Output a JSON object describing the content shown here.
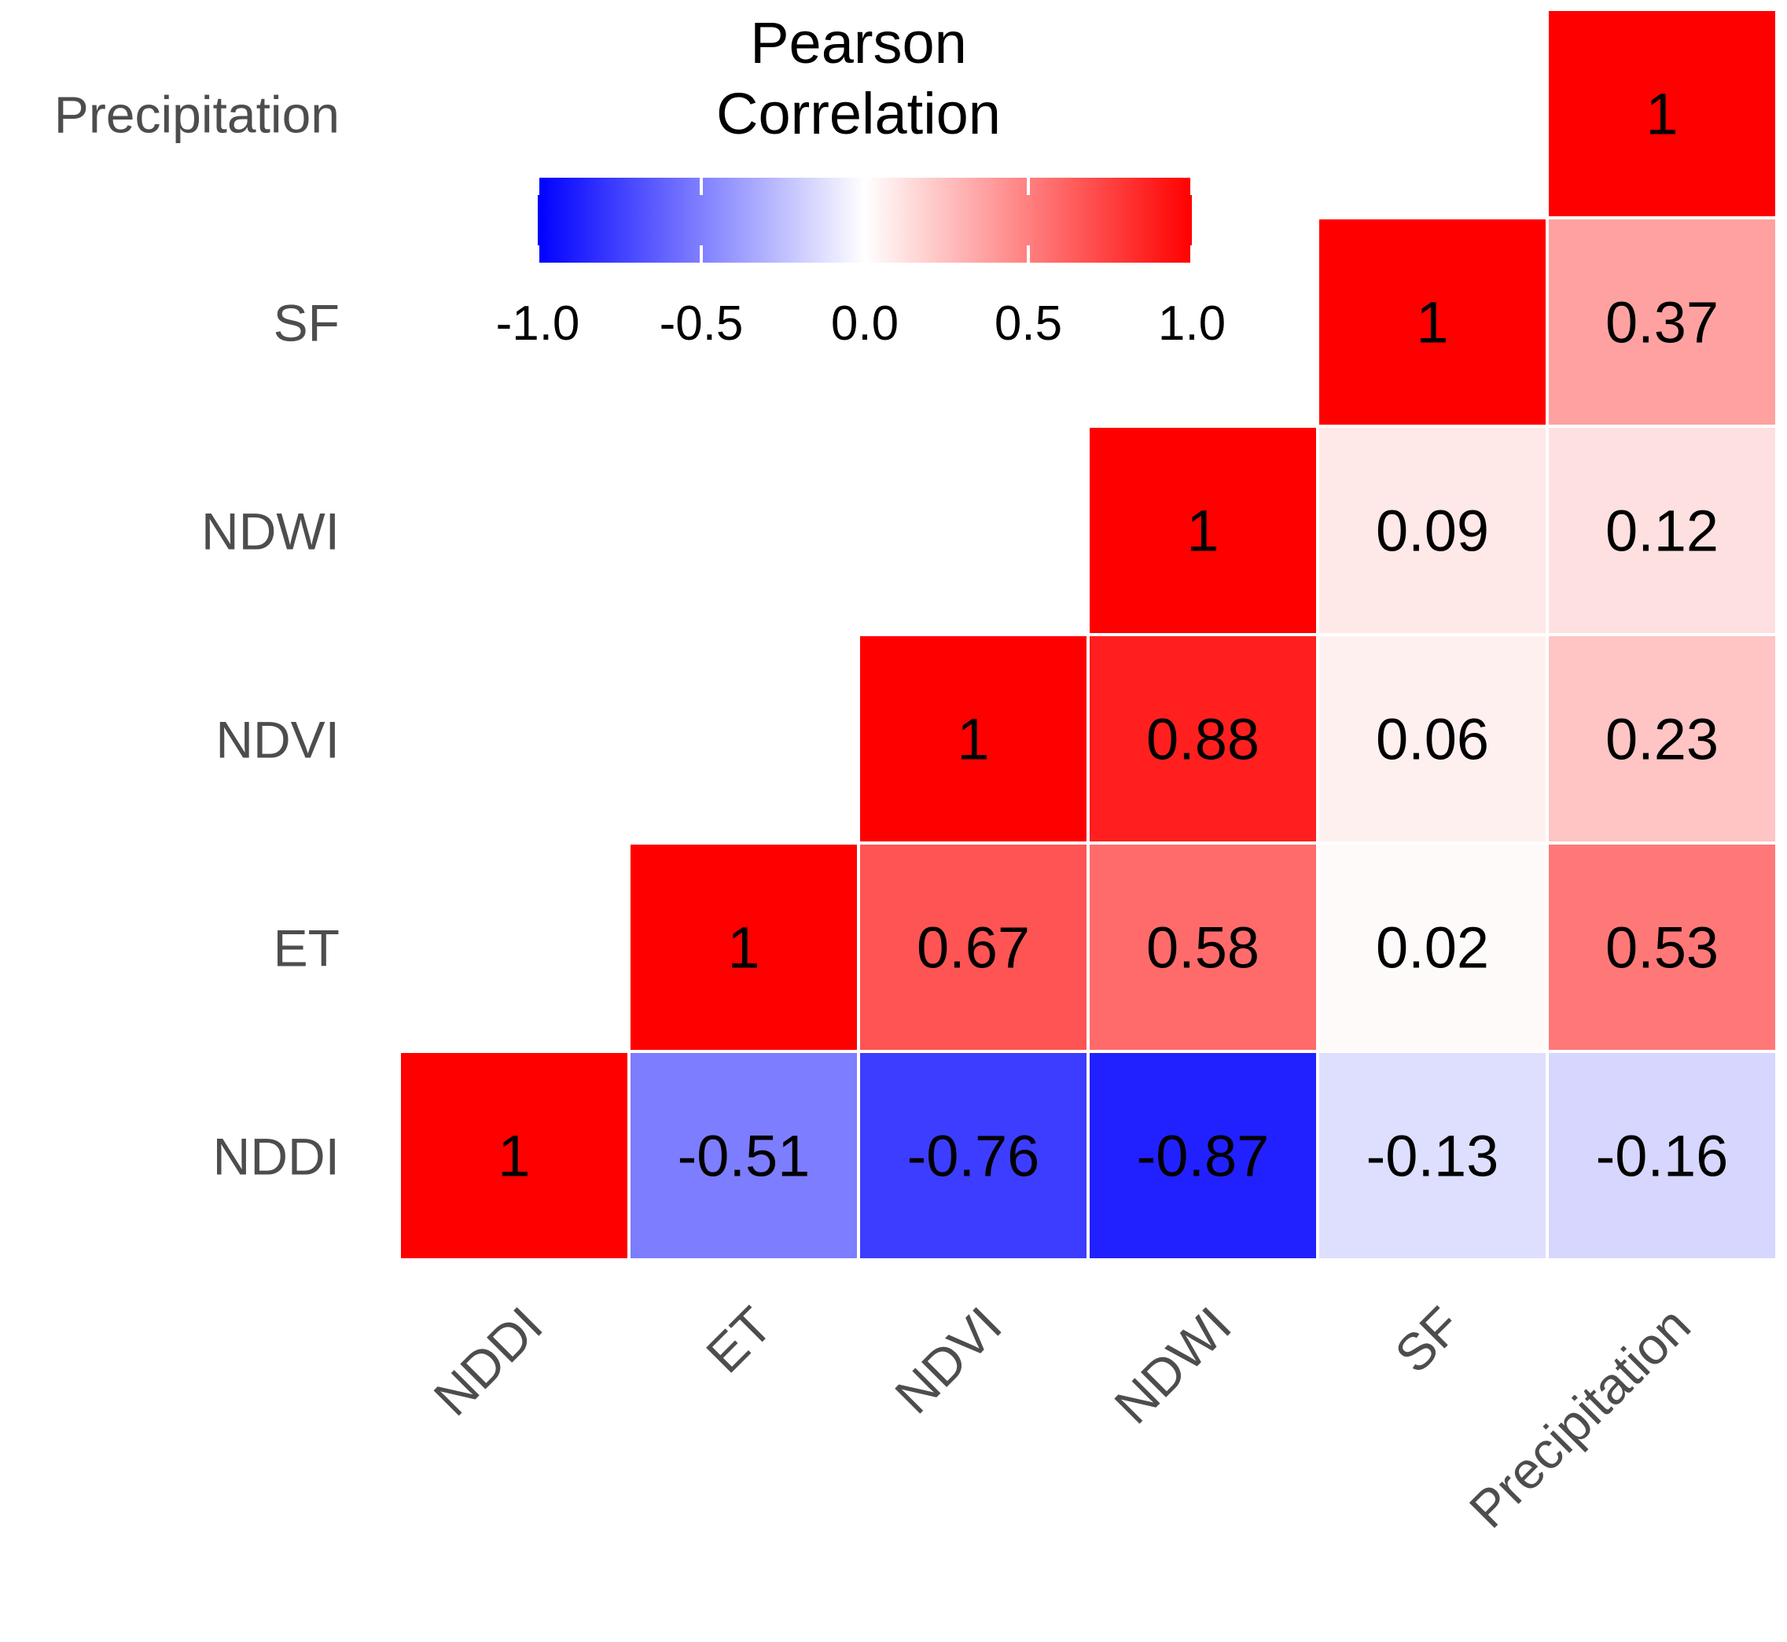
{
  "chart_data": {
    "type": "heatmap",
    "title": "",
    "variables": [
      "NDDI",
      "ET",
      "NDVI",
      "NDWI",
      "SF",
      "Precipitation"
    ],
    "x_tick_labels": [
      "NDDI",
      "ET",
      "NDVI",
      "NDWI",
      "SF",
      "Precipitation"
    ],
    "y_tick_labels": [
      "NDDI",
      "ET",
      "NDVI",
      "NDWI",
      "SF",
      "Precipitation"
    ],
    "cells": [
      {
        "x": "NDDI",
        "y": "NDDI",
        "value": 1,
        "label": "1"
      },
      {
        "x": "ET",
        "y": "NDDI",
        "value": -0.51,
        "label": "-0.51"
      },
      {
        "x": "NDVI",
        "y": "NDDI",
        "value": -0.76,
        "label": "-0.76"
      },
      {
        "x": "NDWI",
        "y": "NDDI",
        "value": -0.87,
        "label": "-0.87"
      },
      {
        "x": "SF",
        "y": "NDDI",
        "value": -0.13,
        "label": "-0.13"
      },
      {
        "x": "Precipitation",
        "y": "NDDI",
        "value": -0.16,
        "label": "-0.16"
      },
      {
        "x": "ET",
        "y": "ET",
        "value": 1,
        "label": "1"
      },
      {
        "x": "NDVI",
        "y": "ET",
        "value": 0.67,
        "label": "0.67"
      },
      {
        "x": "NDWI",
        "y": "ET",
        "value": 0.58,
        "label": "0.58"
      },
      {
        "x": "SF",
        "y": "ET",
        "value": 0.02,
        "label": "0.02"
      },
      {
        "x": "Precipitation",
        "y": "ET",
        "value": 0.53,
        "label": "0.53"
      },
      {
        "x": "NDVI",
        "y": "NDVI",
        "value": 1,
        "label": "1"
      },
      {
        "x": "NDWI",
        "y": "NDVI",
        "value": 0.88,
        "label": "0.88"
      },
      {
        "x": "SF",
        "y": "NDVI",
        "value": 0.06,
        "label": "0.06"
      },
      {
        "x": "Precipitation",
        "y": "NDVI",
        "value": 0.23,
        "label": "0.23"
      },
      {
        "x": "NDWI",
        "y": "NDWI",
        "value": 1,
        "label": "1"
      },
      {
        "x": "SF",
        "y": "NDWI",
        "value": 0.09,
        "label": "0.09"
      },
      {
        "x": "Precipitation",
        "y": "NDWI",
        "value": 0.12,
        "label": "0.12"
      },
      {
        "x": "SF",
        "y": "SF",
        "value": 1,
        "label": "1"
      },
      {
        "x": "Precipitation",
        "y": "SF",
        "value": 0.37,
        "label": "0.37"
      },
      {
        "x": "Precipitation",
        "y": "Precipitation",
        "value": 1,
        "label": "1"
      }
    ],
    "legend": {
      "title_lines": [
        "Pearson",
        "Correlation"
      ],
      "range": [
        -1,
        1
      ],
      "ticks": [
        -1.0,
        -0.5,
        0.0,
        0.5,
        1.0
      ],
      "tick_labels": [
        "-1.0",
        "-0.5",
        "0.0",
        "0.5",
        "1.0"
      ],
      "position": "top-left"
    },
    "colors": {
      "low": "#0000ff",
      "mid": "#ffffff",
      "high": "#ff0000",
      "cell_border": "#ffffff",
      "axis_text": "#4d4d4d"
    }
  }
}
